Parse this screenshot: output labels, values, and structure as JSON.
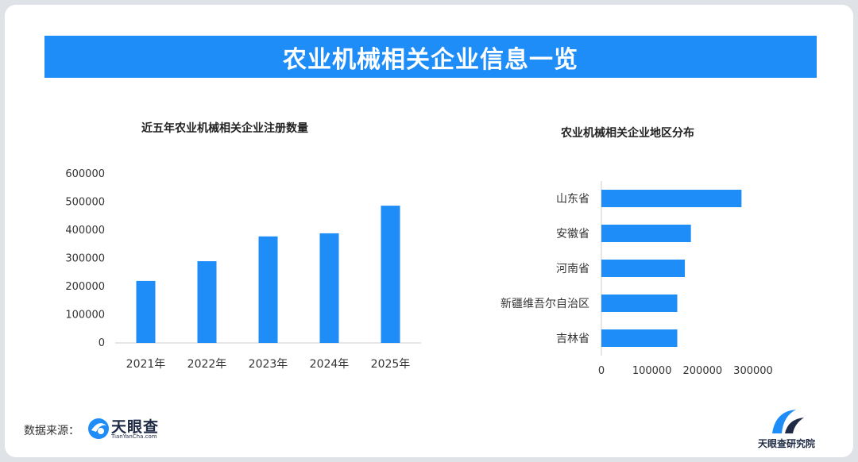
{
  "banner": {
    "title": "农业机械相关企业信息一览"
  },
  "footer": {
    "source_label": "数据来源：",
    "logo_name": "天眼查",
    "logo_url": "TianYanCha.com",
    "research_name": "天眼查研究院"
  },
  "colors": {
    "bar": "#1e8df8",
    "banner": "#1e8df8",
    "axis": "#cccccc",
    "text": "#333333"
  },
  "chart_data": [
    {
      "type": "bar",
      "title": "近五年农业机械相关企业注册数量",
      "categories": [
        "2021年",
        "2022年",
        "2023年",
        "2024年",
        "2025年"
      ],
      "values": [
        220000,
        290000,
        378000,
        389000,
        487000
      ],
      "yticks": [
        0,
        100000,
        200000,
        300000,
        400000,
        500000,
        600000
      ],
      "ylim": [
        0,
        600000
      ],
      "xlabel": "",
      "ylabel": "",
      "grid": false
    },
    {
      "type": "bar",
      "orientation": "horizontal",
      "title": "农业机械相关企业地区分布",
      "categories": [
        "山东省",
        "安徽省",
        "河南省",
        "新疆维吾尔自治区",
        "吉林省"
      ],
      "values": [
        277000,
        177000,
        165000,
        150000,
        150000
      ],
      "xticks": [
        0,
        100000,
        200000,
        300000
      ],
      "xlim": [
        0,
        300000
      ],
      "xlabel": "",
      "ylabel": "",
      "grid": false
    }
  ]
}
